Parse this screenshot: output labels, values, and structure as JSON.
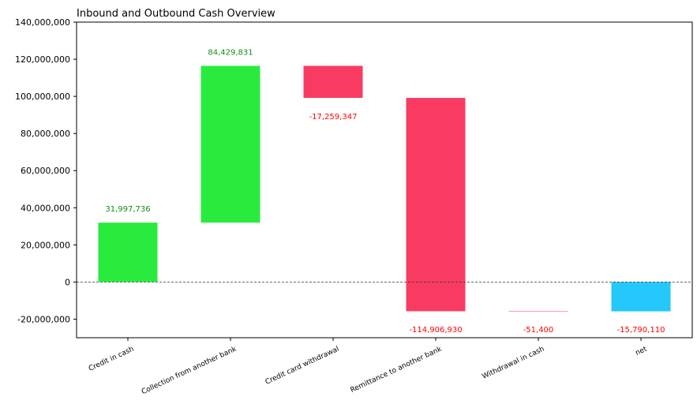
{
  "chart_data": {
    "type": "waterfall",
    "title": "Inbound and Outbound Cash Overview",
    "xlabel": "",
    "ylabel": "",
    "ylim": [
      -30000000,
      140000000
    ],
    "yticks": [
      -20000000,
      0,
      20000000,
      40000000,
      60000000,
      80000000,
      100000000,
      120000000,
      140000000
    ],
    "ytick_labels": [
      "-20,000,000",
      "0",
      "20,000,000",
      "40,000,000",
      "60,000,000",
      "80,000,000",
      "100,000,000",
      "120,000,000",
      "140,000,000"
    ],
    "categories": [
      "Credit in cash",
      "Collection from another bank",
      "Credit card withdrawal",
      "Remittance to another bank",
      "Withdrawal in cash",
      "net"
    ],
    "values": [
      31997736,
      84429831,
      -17259347,
      -114906930,
      -51400,
      -15790110
    ],
    "value_labels": [
      "31,997,736",
      "84,429,831",
      "-17,259,347",
      "-114,906,930",
      "-51,400",
      "-15,790,110"
    ],
    "zero_line": "dashed",
    "grid": false,
    "colors": {
      "increase": "#29eb3e",
      "decrease": "#fa3b61",
      "total": "#24c8fa",
      "increase_label": "#148c14",
      "decrease_label": "#ff0000",
      "axis": "#000000",
      "zero_line": "#333333"
    }
  }
}
